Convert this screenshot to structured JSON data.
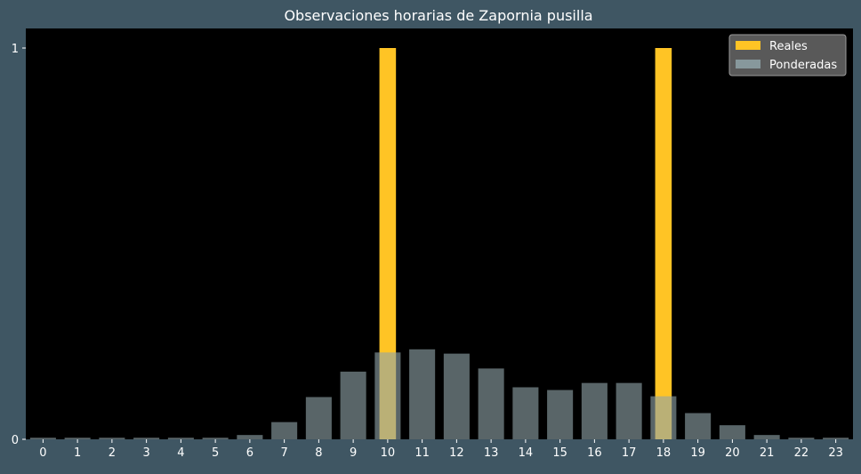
{
  "chart_data": {
    "type": "bar",
    "title": "Observaciones horarias de Zapornia pusilla",
    "xlabel": "",
    "ylabel": "",
    "categories": [
      "0",
      "1",
      "2",
      "3",
      "4",
      "5",
      "6",
      "7",
      "8",
      "9",
      "10",
      "11",
      "12",
      "13",
      "14",
      "15",
      "16",
      "17",
      "18",
      "19",
      "20",
      "21",
      "22",
      "23"
    ],
    "ylim": [
      0,
      1.05
    ],
    "yticks": [
      0,
      1
    ],
    "grid": false,
    "legend": "top-right",
    "series": [
      {
        "name": "Reales",
        "color": "#ffc425",
        "values": [
          0,
          0,
          0,
          0,
          0,
          0,
          0,
          0,
          0,
          0,
          1,
          0,
          0,
          0,
          0,
          0,
          0,
          0,
          1,
          0,
          0,
          0,
          0,
          0
        ]
      },
      {
        "name": "Ponderadas",
        "color": "#8fa3a8",
        "values": [
          0.004,
          0.004,
          0.004,
          0.004,
          0.004,
          0.004,
          0.011,
          0.044,
          0.108,
          0.173,
          0.222,
          0.23,
          0.219,
          0.181,
          0.133,
          0.126,
          0.144,
          0.144,
          0.11,
          0.067,
          0.036,
          0.011,
          0.004,
          0.004
        ]
      }
    ]
  },
  "colors": {
    "background": "#3f5663",
    "plot_area": "#000000",
    "text": "#ffffff"
  }
}
